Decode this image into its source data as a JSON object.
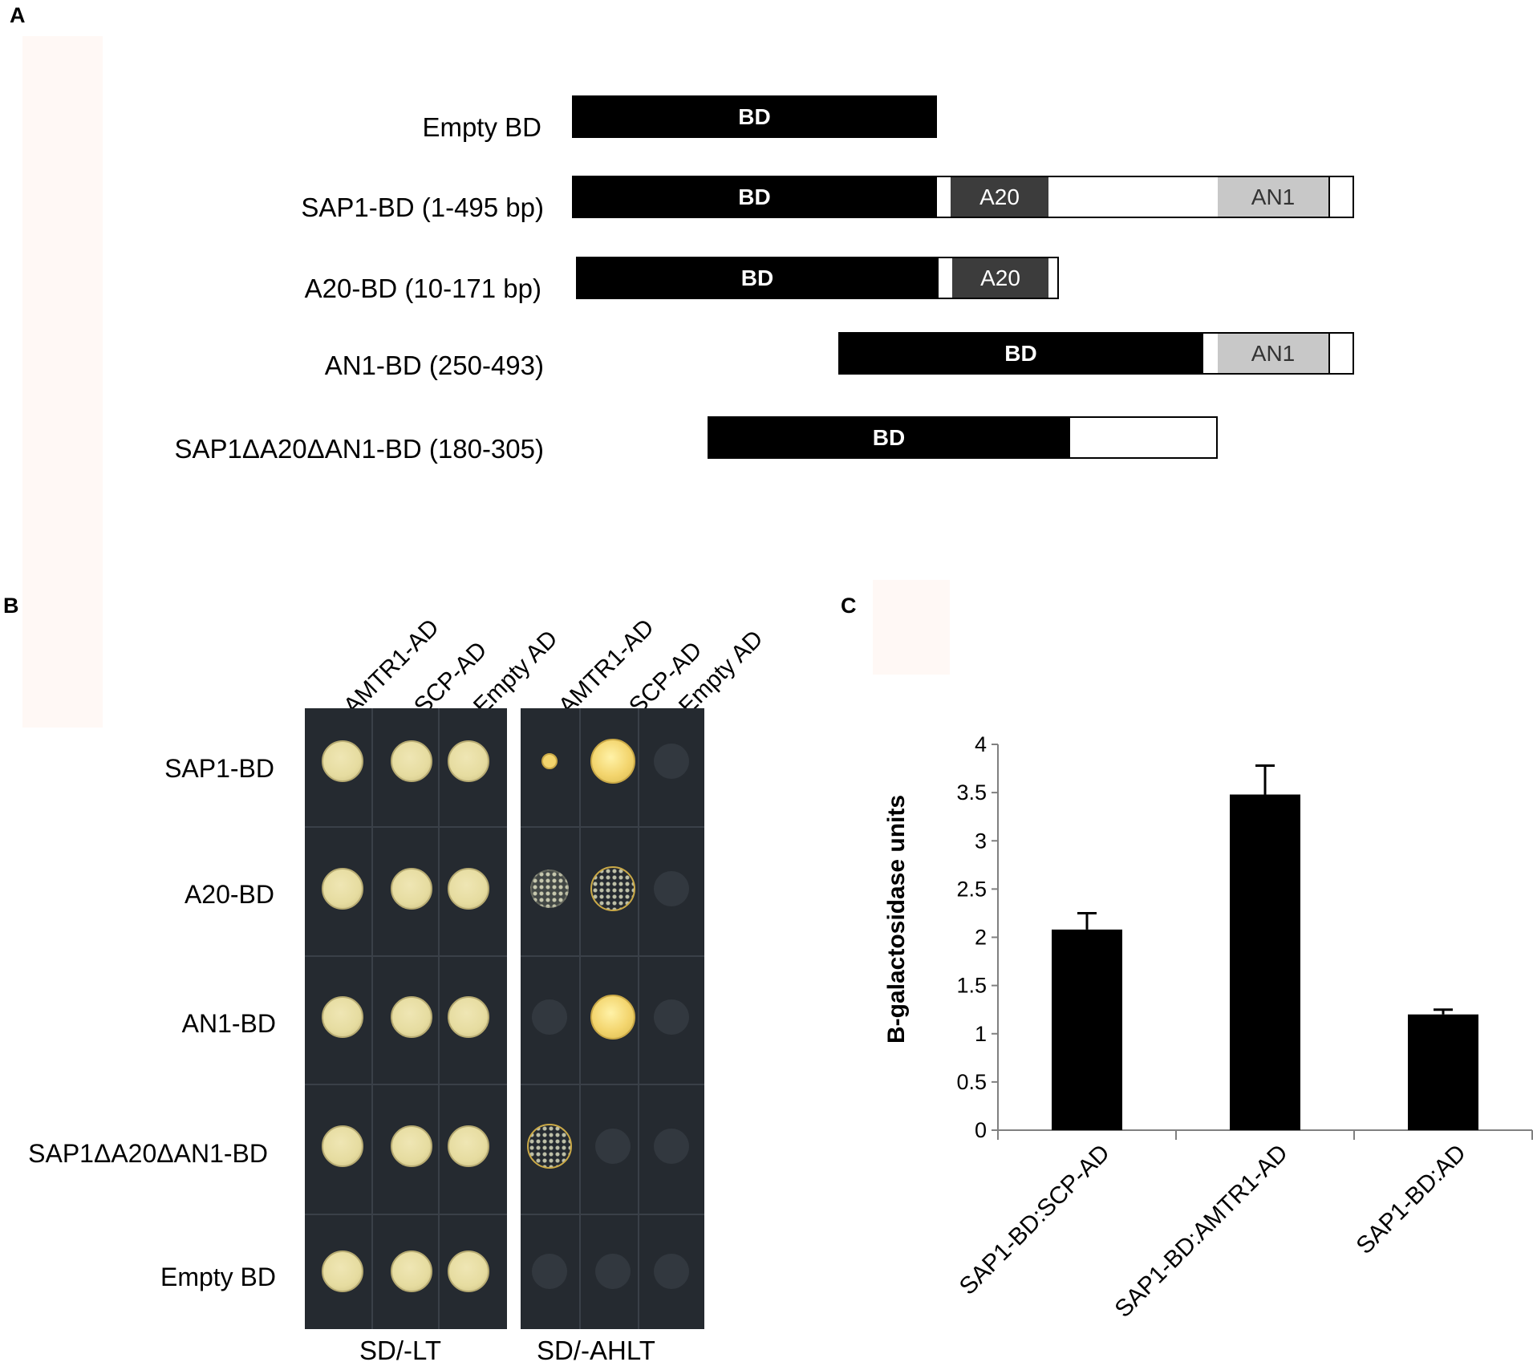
{
  "panels": {
    "a": "A",
    "b": "B",
    "c": "C"
  },
  "constructs": [
    {
      "label": "Empty BD",
      "domains": [
        {
          "type": "bd",
          "text": "BD"
        }
      ]
    },
    {
      "label": "SAP1-BD  (1-495 bp)",
      "domains": [
        {
          "type": "bd",
          "text": "BD"
        },
        {
          "type": "a20",
          "text": "A20"
        },
        {
          "type": "an1",
          "text": "AN1"
        }
      ]
    },
    {
      "label": "A20-BD  (10-171 bp)",
      "domains": [
        {
          "type": "bd",
          "text": "BD"
        },
        {
          "type": "a20",
          "text": "A20"
        }
      ]
    },
    {
      "label": "AN1-BD  (250-493)",
      "domains": [
        {
          "type": "bd",
          "text": "BD"
        },
        {
          "type": "an1",
          "text": "AN1"
        }
      ]
    },
    {
      "label": "SAP1ΔA20ΔAN1-BD  (180-305)",
      "domains": [
        {
          "type": "bd",
          "text": "BD"
        }
      ]
    }
  ],
  "yeast": {
    "columns": [
      "AMTR1-AD",
      "SCP-AD",
      "Empty AD",
      "AMTR1-AD",
      "SCP-AD",
      "Empty AD"
    ],
    "rows": [
      "SAP1-BD",
      "A20-BD",
      "AN1-BD",
      "SAP1ΔA20ΔAN1-BD",
      "Empty BD"
    ],
    "plates": [
      "SD/-LT",
      "SD/-AHLT"
    ],
    "growth_sd_ahlt": [
      [
        "small",
        "strong",
        "none"
      ],
      [
        "faint",
        "strong",
        "none"
      ],
      [
        "none",
        "strong",
        "none"
      ],
      [
        "strong",
        "none",
        "none"
      ],
      [
        "none",
        "none",
        "none"
      ]
    ],
    "colors": {
      "colony": "#e6dca0",
      "colony_bright": "#f3d56e",
      "plate_bg": "#252a30"
    }
  },
  "chart_data": {
    "type": "bar",
    "categories": [
      "SAP1-BD:SCP-AD",
      "SAP1-BD:AMTR1-AD",
      "SAP1-BD:AD"
    ],
    "values": [
      2.08,
      3.48,
      1.2
    ],
    "errors": [
      0.17,
      0.3,
      0.05
    ],
    "xlabel": "",
    "ylabel": "B-galactosidase  units",
    "ylim": [
      0,
      4
    ],
    "yticks": [
      "0",
      "0.5",
      "1",
      "1.5",
      "2",
      "2.5",
      "3",
      "3.5",
      "4"
    ],
    "grid": false,
    "bar_color": "#000000"
  }
}
